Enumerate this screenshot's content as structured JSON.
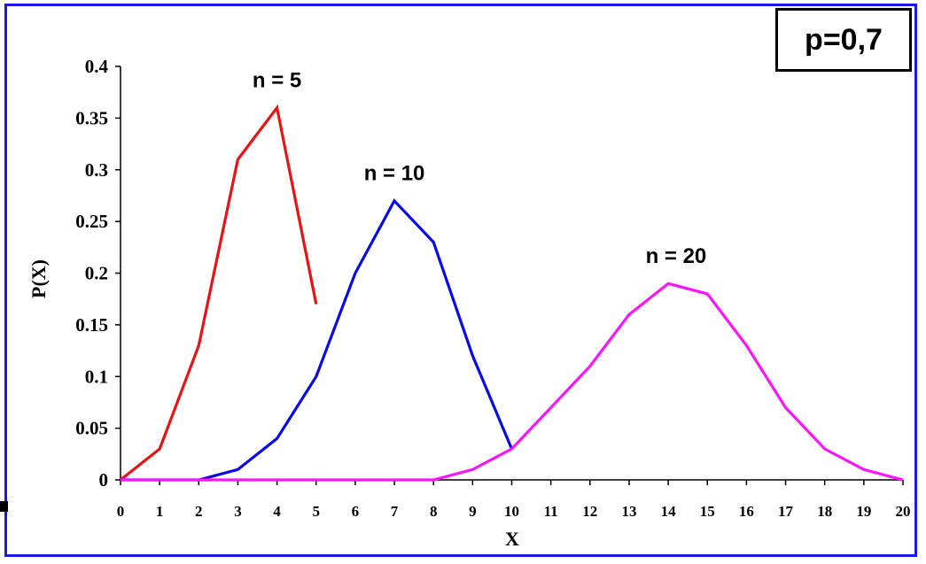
{
  "chart_data": {
    "type": "line",
    "title": "",
    "xlabel": "X",
    "ylabel": "P(X)",
    "xlim": [
      0,
      20
    ],
    "ylim": [
      0,
      0.4
    ],
    "x_ticks": [
      "0",
      "1",
      "2",
      "3",
      "4",
      "5",
      "6",
      "7",
      "8",
      "9",
      "10",
      "11",
      "12",
      "13",
      "14",
      "15",
      "16",
      "17",
      "18",
      "19",
      "20"
    ],
    "y_ticks": [
      "0",
      "0.05",
      "0.1",
      "0.15",
      "0.2",
      "0.25",
      "0.3",
      "0.35",
      "0.4"
    ],
    "grid": false,
    "legend": "none",
    "parameter_box": "p=0,7",
    "series": [
      {
        "label": "n = 5",
        "color": "#e61414",
        "x": [
          0,
          1,
          2,
          3,
          4,
          5
        ],
        "y": [
          0,
          0.03,
          0.13,
          0.31,
          0.36,
          0.17
        ],
        "label_at": [
          4,
          0.38
        ]
      },
      {
        "label": "n = 10",
        "color": "#0a0ae6",
        "x": [
          0,
          1,
          2,
          3,
          4,
          5,
          6,
          7,
          8,
          9,
          10
        ],
        "y": [
          0,
          0,
          0,
          0.01,
          0.04,
          0.1,
          0.2,
          0.27,
          0.23,
          0.12,
          0.03
        ],
        "label_at": [
          7,
          0.29
        ]
      },
      {
        "label": "n = 20",
        "color": "#ff14ff",
        "x": [
          0,
          1,
          2,
          3,
          4,
          5,
          6,
          7,
          8,
          9,
          10,
          11,
          12,
          13,
          14,
          15,
          16,
          17,
          18,
          19,
          20
        ],
        "y": [
          0,
          0,
          0,
          0,
          0,
          0,
          0,
          0,
          0,
          0.01,
          0.03,
          0.07,
          0.11,
          0.16,
          0.19,
          0.18,
          0.13,
          0.07,
          0.03,
          0.01,
          0
        ],
        "label_at": [
          14.2,
          0.21
        ]
      }
    ]
  }
}
